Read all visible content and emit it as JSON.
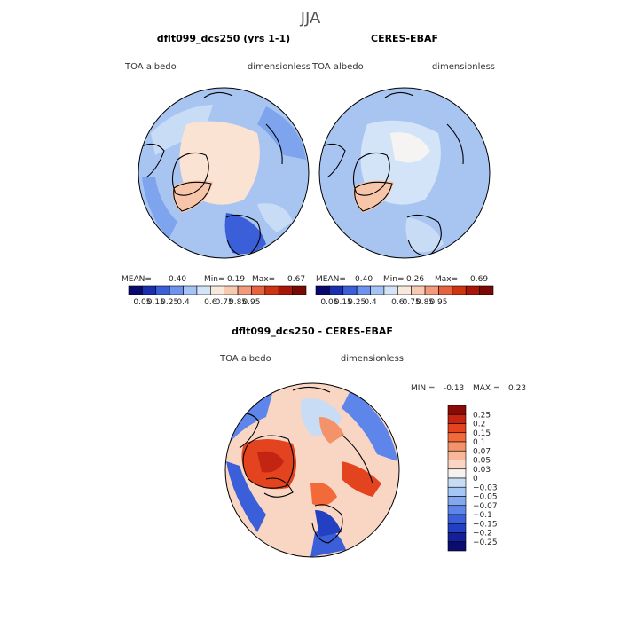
{
  "chart_data": [
    {
      "type": "heatmap",
      "projection": "north-polar-stereographic",
      "title": "dflt099_dcs250 (yrs 1-1)",
      "variable": "TOA albedo",
      "units": "dimensionless",
      "stats": {
        "mean_label": "MEAN=",
        "mean": "0.40",
        "min_label": "Min=",
        "min": "0.19",
        "max_label": "Max=",
        "max": "0.67"
      },
      "colorbar_ticks": [
        "0.05",
        "0.15",
        "0.25",
        "0.4",
        "0.6",
        "0.75",
        "0.85",
        "0.95"
      ]
    },
    {
      "type": "heatmap",
      "projection": "north-polar-stereographic",
      "title": "CERES-EBAF",
      "variable": "TOA albedo",
      "units": "dimensionless",
      "stats": {
        "mean_label": "MEAN=",
        "mean": "0.40",
        "min_label": "Min=",
        "min": "0.26",
        "max_label": "Max=",
        "max": "0.69"
      },
      "colorbar_ticks": [
        "0.05",
        "0.15",
        "0.25",
        "0.4",
        "0.6",
        "0.75",
        "0.85",
        "0.95"
      ]
    },
    {
      "type": "heatmap",
      "projection": "north-polar-stereographic",
      "title": "dflt099_dcs250 - CERES-EBAF",
      "variable": "TOA albedo",
      "units": "dimensionless",
      "stats": {
        "min_label": "MIN =",
        "min": "-0.13",
        "max_label": "MAX =",
        "max": "0.23"
      },
      "colorbar_ticks": [
        "0.25",
        "0.2",
        "0.15",
        "0.1",
        "0.07",
        "0.05",
        "0.03",
        "0",
        "−0.03",
        "−0.05",
        "−0.07",
        "−0.1",
        "−0.15",
        "−0.2",
        "−0.25"
      ]
    }
  ],
  "figure": {
    "season": "JJA"
  },
  "colors": {
    "abs_scale": [
      "#08086e",
      "#1a2fb0",
      "#3a5fd8",
      "#6e93ee",
      "#a6c3f5",
      "#d3e3f8",
      "#f9e8dc",
      "#f6c9b0",
      "#f19a7c",
      "#e5633f",
      "#cc3412",
      "#a8160a",
      "#7a0804"
    ],
    "diff_scale_top_to_bottom": [
      "#8a0a06",
      "#c42412",
      "#e44320",
      "#f26a3a",
      "#f4936a",
      "#f6b898",
      "#f9d6c4",
      "#f5f2f0",
      "#c8dcf6",
      "#a6c6f5",
      "#84a8f0",
      "#5d85ea",
      "#3a5fd8",
      "#2340c2",
      "#14209a",
      "#0a0c6e"
    ],
    "ocean_blue": "#a8c5f2",
    "land_warm": "#fbe3d4",
    "greenland": "#f7c6aa"
  }
}
